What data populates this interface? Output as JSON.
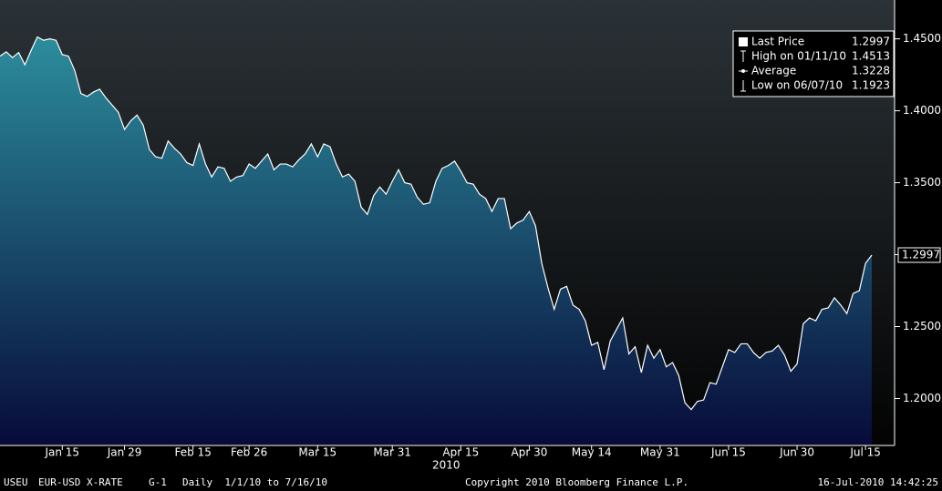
{
  "chart_data": {
    "type": "area",
    "categories": [
      null,
      null,
      null,
      null,
      null,
      null,
      null,
      null,
      null,
      null,
      "Jan 15",
      null,
      null,
      null,
      null,
      null,
      null,
      null,
      null,
      null,
      "Jan 29",
      null,
      null,
      null,
      null,
      null,
      null,
      null,
      null,
      null,
      null,
      "Feb 15",
      null,
      null,
      null,
      null,
      null,
      null,
      null,
      null,
      "Feb 26",
      null,
      null,
      null,
      null,
      null,
      null,
      null,
      null,
      null,
      null,
      "Mar 15",
      null,
      null,
      null,
      null,
      null,
      null,
      null,
      null,
      null,
      null,
      null,
      "Mar 31",
      null,
      null,
      null,
      null,
      null,
      null,
      null,
      null,
      null,
      null,
      "Apr 15",
      null,
      null,
      null,
      null,
      null,
      null,
      null,
      null,
      null,
      null,
      "Apr 30",
      null,
      null,
      null,
      null,
      null,
      null,
      null,
      null,
      null,
      "May 14",
      null,
      null,
      null,
      null,
      null,
      null,
      null,
      null,
      null,
      null,
      "May 31",
      null,
      null,
      null,
      null,
      null,
      null,
      null,
      null,
      null,
      null,
      "Jun 15",
      null,
      null,
      null,
      null,
      null,
      null,
      null,
      null,
      null,
      null,
      "Jun 30",
      null,
      null,
      null,
      null,
      null,
      null,
      null,
      null,
      null,
      null,
      "Jul 15",
      null
    ],
    "values": [
      1.438,
      1.441,
      1.437,
      1.4405,
      1.432,
      1.442,
      1.4513,
      1.449,
      1.45,
      1.449,
      1.439,
      1.438,
      1.428,
      1.412,
      1.41,
      1.413,
      1.415,
      1.409,
      1.404,
      1.399,
      1.387,
      1.393,
      1.397,
      1.39,
      1.373,
      1.368,
      1.367,
      1.379,
      1.374,
      1.37,
      1.364,
      1.362,
      1.377,
      1.363,
      1.354,
      1.361,
      1.36,
      1.351,
      1.354,
      1.355,
      1.363,
      1.36,
      1.365,
      1.37,
      1.359,
      1.363,
      1.363,
      1.361,
      1.366,
      1.37,
      1.377,
      1.368,
      1.377,
      1.375,
      1.363,
      1.354,
      1.356,
      1.351,
      1.333,
      1.328,
      1.341,
      1.347,
      1.342,
      1.351,
      1.359,
      1.35,
      1.349,
      1.34,
      1.335,
      1.336,
      1.351,
      1.36,
      1.362,
      1.365,
      1.358,
      1.35,
      1.349,
      1.342,
      1.339,
      1.33,
      1.339,
      1.339,
      1.318,
      1.322,
      1.324,
      1.33,
      1.32,
      1.294,
      1.277,
      1.262,
      1.276,
      1.278,
      1.265,
      1.262,
      1.254,
      1.237,
      1.239,
      1.22,
      1.24,
      1.248,
      1.256,
      1.231,
      1.236,
      1.218,
      1.237,
      1.228,
      1.234,
      1.222,
      1.225,
      1.216,
      1.197,
      1.1923,
      1.198,
      1.199,
      1.211,
      1.21,
      1.222,
      1.234,
      1.232,
      1.238,
      1.238,
      1.232,
      1.228,
      1.232,
      1.233,
      1.237,
      1.23,
      1.219,
      1.224,
      1.252,
      1.256,
      1.254,
      1.262,
      1.263,
      1.27,
      1.265,
      1.259,
      1.273,
      1.275,
      1.294,
      1.2997
    ],
    "color": "#ffffff",
    "fill_gradient": [
      "#2c8d9c",
      "#070b3a"
    ],
    "year_label": "2010",
    "ylim": [
      1.168,
      1.477
    ],
    "yticks": [
      {
        "value": 1.2,
        "label": "1.2000"
      },
      {
        "value": 1.25,
        "label": "1.2500"
      },
      {
        "value": 1.3,
        "label": "1.3000"
      },
      {
        "value": 1.35,
        "label": "1.3500"
      },
      {
        "value": 1.4,
        "label": "1.4000"
      },
      {
        "value": 1.45,
        "label": "1.4500"
      }
    ],
    "legend": [
      {
        "name": "Last Price",
        "value": 1.2997
      },
      {
        "name": "High on 01/11/10",
        "value": 1.4513
      },
      {
        "name": "Average",
        "value": 1.3228
      },
      {
        "name": "Low on 06/07/10",
        "value": 1.1923
      }
    ]
  },
  "footer": {
    "ticker": "USEU",
    "name": "EUR-USD X-RATE",
    "chart_id": "G-1",
    "period": "Daily  1/1/10 to 7/16/10",
    "copyright": "Copyright 2010 Bloomberg Finance L.P.",
    "timestamp": "16-Jul-2010 14:42:25"
  }
}
